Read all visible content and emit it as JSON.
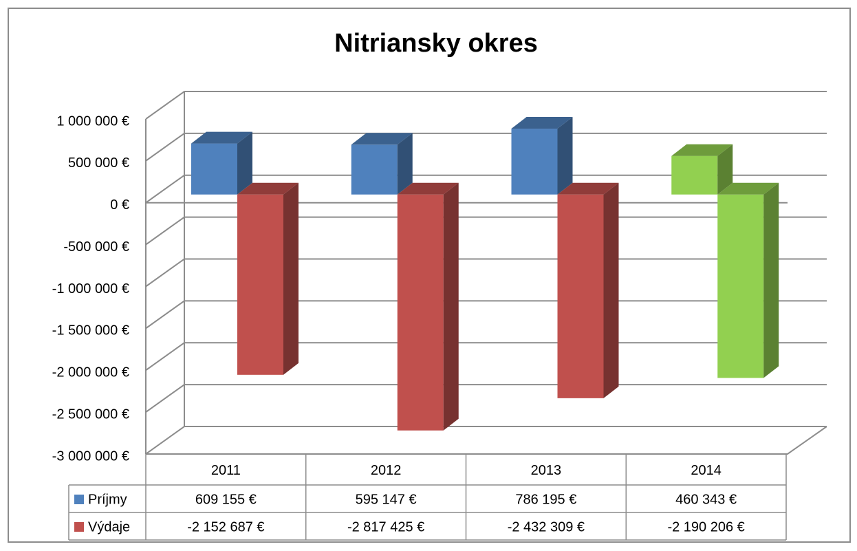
{
  "chart_data": {
    "type": "bar3d",
    "title": "Nitriansky okres",
    "categories": [
      "2011",
      "2012",
      "2013",
      "2014"
    ],
    "series": [
      {
        "name": "Príjmy",
        "color": "#4f81bd",
        "colors": [
          "#4f81bd",
          "#4f81bd",
          "#4f81bd",
          "#92d050"
        ],
        "values": [
          609155,
          595147,
          786195,
          460343
        ],
        "value_labels": [
          "609 155 €",
          "595 147 €",
          "786 195 €",
          "460 343 €"
        ]
      },
      {
        "name": "Výdaje",
        "color": "#c0504d",
        "colors": [
          "#c0504d",
          "#c0504d",
          "#c0504d",
          "#92d050"
        ],
        "values": [
          -2152687,
          -2817425,
          -2432309,
          -2190206
        ],
        "value_labels": [
          "-2 152 687 €",
          "-2 817 425 €",
          "-2 432 309 €",
          "-2 190 206 €"
        ]
      }
    ],
    "ylim": [
      -3000000,
      1000000
    ],
    "yticks": [
      {
        "value": 1000000,
        "label": "1 000 000 €"
      },
      {
        "value": 500000,
        "label": "500 000 €"
      },
      {
        "value": 0,
        "label": "0 €"
      },
      {
        "value": -500000,
        "label": "-500 000 €"
      },
      {
        "value": -1000000,
        "label": "-1 000 000 €"
      },
      {
        "value": -1500000,
        "label": "-1 500 000 €"
      },
      {
        "value": -2000000,
        "label": "-2 000 000 €"
      },
      {
        "value": -2500000,
        "label": "-2 500 000 €"
      },
      {
        "value": -3000000,
        "label": "-3 000 000 €"
      }
    ],
    "grid": true,
    "legend": "table"
  }
}
